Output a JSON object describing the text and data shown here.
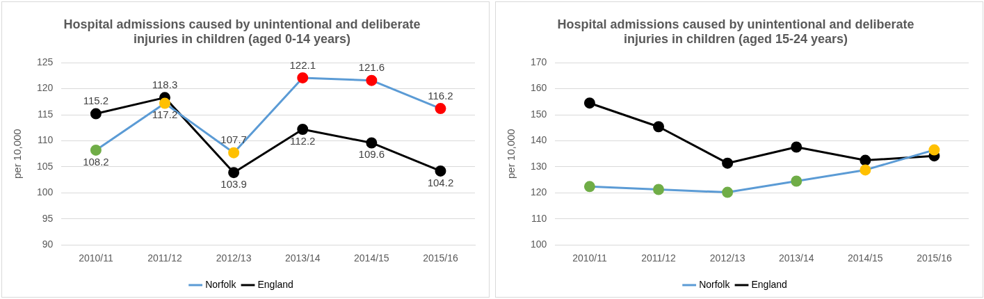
{
  "chart_data": [
    {
      "type": "line",
      "title": "Hospital admissions caused by unintentional and deliberate injuries in children (aged 0-14 years)",
      "ylabel": "per 10,000",
      "categories": [
        "2010/11",
        "2011/12",
        "2012/13",
        "2013/14",
        "2014/15",
        "2015/16"
      ],
      "series": [
        {
          "name": "Norfolk",
          "color": "#5b9bd5",
          "colors": [
            "#70ad47",
            "#ffc000",
            "#ffc000",
            "#ff0000",
            "#ff0000",
            "#ff0000"
          ],
          "values": [
            108.2,
            117.2,
            107.7,
            122.1,
            121.6,
            116.2
          ]
        },
        {
          "name": "England",
          "color": "#000000",
          "colors": [
            "#000000",
            "#000000",
            "#000000",
            "#000000",
            "#000000",
            "#000000"
          ],
          "values": [
            115.2,
            118.3,
            103.9,
            112.2,
            109.6,
            104.2
          ]
        }
      ],
      "ylim": [
        90,
        125
      ],
      "yticks": [
        90,
        95,
        100,
        105,
        110,
        115,
        120,
        125
      ],
      "grid": "y",
      "legend": "bottom",
      "marker": "circle",
      "data_labels": true
    },
    {
      "type": "line",
      "title": "Hospital admissions caused by unintentional and deliberate injuries in children (aged 15-24 years)",
      "ylabel": "per 10,000",
      "categories": [
        "2010/11",
        "2011/12",
        "2012/13",
        "2013/14",
        "2014/15",
        "2015/16"
      ],
      "series": [
        {
          "name": "Norfolk",
          "color": "#5b9bd5",
          "colors": [
            "#70ad47",
            "#70ad47",
            "#70ad47",
            "#70ad47",
            "#ffc000",
            "#ffc000"
          ],
          "values": [
            122.4,
            121.3,
            120.2,
            124.5,
            128.8,
            136.5
          ]
        },
        {
          "name": "England",
          "color": "#000000",
          "colors": [
            "#000000",
            "#000000",
            "#000000",
            "#000000",
            "#000000",
            "#000000"
          ],
          "values": [
            154.5,
            145.4,
            131.4,
            137.6,
            132.5,
            134.2
          ]
        }
      ],
      "ylim": [
        100,
        170
      ],
      "yticks": [
        100,
        110,
        120,
        130,
        140,
        150,
        160,
        170
      ],
      "grid": "y",
      "legend": "bottom",
      "marker": "circle"
    }
  ]
}
